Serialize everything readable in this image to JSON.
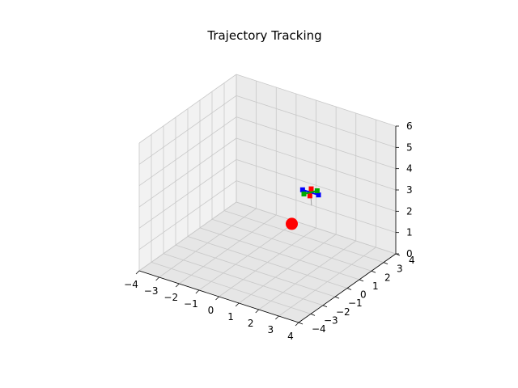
{
  "chart_data": {
    "type": "scatter3d",
    "title": "Trajectory Tracking",
    "xlabel": "",
    "ylabel": "",
    "zlabel": "",
    "xlim": [
      -4,
      4
    ],
    "ylim": [
      -4,
      4
    ],
    "zlim": [
      0,
      6
    ],
    "x_ticks": [
      "−4",
      "−3",
      "−2",
      "−1",
      "0",
      "1",
      "2",
      "3",
      "4"
    ],
    "y_ticks": [
      "−4",
      "−3",
      "−2",
      "−1",
      "0",
      "1",
      "2",
      "3",
      "4"
    ],
    "z_ticks": [
      "0",
      "1",
      "2",
      "3",
      "4",
      "5",
      "6"
    ],
    "grid": true,
    "pane_colors": [
      "#f2f2f2",
      "#ebebeb",
      "#e6e6e6"
    ],
    "series": [
      {
        "marker": "circle",
        "color": "#ff0000",
        "points": [
          {
            "x": 0.0,
            "y": 2.0,
            "z": 1.0
          }
        ]
      },
      {
        "marker": "line",
        "color": "#9e9e9e",
        "points": [
          {
            "x": 0.2,
            "y": 3.3,
            "z": 1.4
          },
          {
            "x": 0.15,
            "y": 3.3,
            "z": 2.0
          }
        ]
      },
      {
        "marker": "rotor-arm",
        "color": "#0000ff",
        "points": [
          {
            "x": -0.25,
            "y": 3.3,
            "z": 2.0
          },
          {
            "x": 0.55,
            "y": 3.3,
            "z": 2.0
          }
        ]
      },
      {
        "marker": "rotor-arm",
        "color": "#ff0000",
        "points": [
          {
            "x": 0.3,
            "y": 3.0,
            "z": 2.0
          },
          {
            "x": 0.0,
            "y": 3.6,
            "z": 2.0
          }
        ]
      },
      {
        "marker": "rotor-arm",
        "color": "#00aa00",
        "points": [
          {
            "x": 0.0,
            "y": 3.0,
            "z": 2.0
          },
          {
            "x": 0.3,
            "y": 3.6,
            "z": 2.0
          }
        ]
      }
    ]
  }
}
